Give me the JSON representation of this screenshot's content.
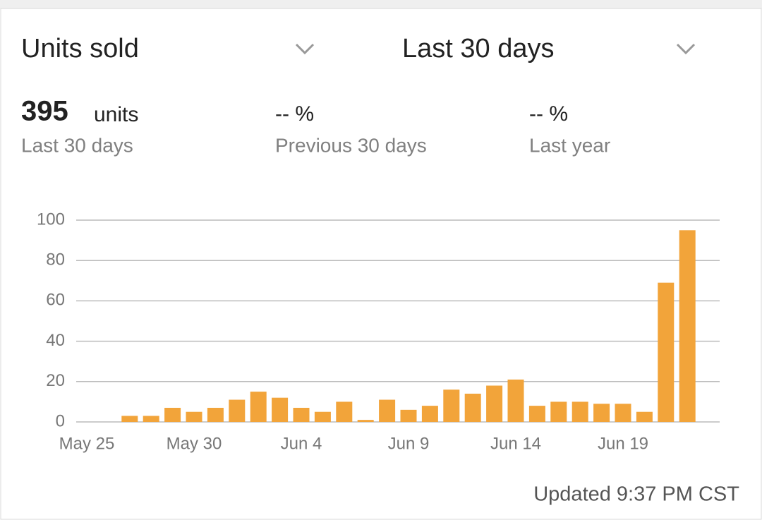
{
  "header": {
    "metric": "Units sold",
    "period": "Last 30 days"
  },
  "summary": [
    {
      "value": 395,
      "unit": "units",
      "label": "Last 30 days"
    },
    {
      "value": "-- %",
      "label": "Previous 30 days"
    },
    {
      "value": "-- %",
      "label": "Last year"
    }
  ],
  "chart_data": {
    "type": "bar",
    "color": "#f2a43a",
    "grid": true,
    "categories": [
      "May 25",
      null,
      null,
      null,
      null,
      "May 30",
      null,
      null,
      null,
      null,
      "Jun 4",
      null,
      null,
      null,
      null,
      "Jun 9",
      null,
      null,
      null,
      null,
      "Jun 14",
      null,
      null,
      null,
      null,
      "Jun 19",
      null,
      null,
      null
    ],
    "values": [
      0,
      0,
      3,
      3,
      7,
      5,
      7,
      11,
      15,
      12,
      7,
      5,
      10,
      1,
      11,
      6,
      8,
      16,
      14,
      18,
      21,
      8,
      10,
      10,
      9,
      9,
      5,
      69,
      95
    ],
    "ylim": [
      0,
      100
    ],
    "yticks": [
      0,
      20,
      40,
      60,
      80,
      100
    ]
  },
  "footer": "Updated 9:37 PM CST"
}
